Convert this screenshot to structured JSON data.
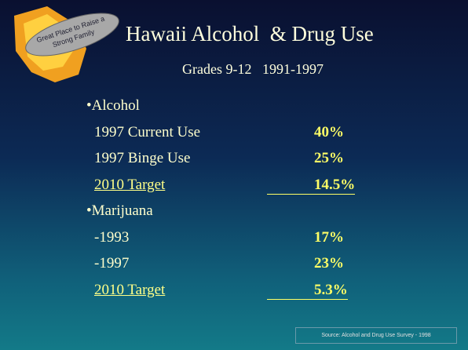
{
  "logo": {
    "line1": "Great Place to Raise a",
    "line2": "Strong Family"
  },
  "header": {
    "title": "Hawaii Alcohol  & Drug Use",
    "subtitle": "Grades 9-12   1991-1997"
  },
  "sections": [
    {
      "heading": "•Alcohol",
      "items": [
        {
          "label": "1997 Current Use",
          "value": "40%"
        },
        {
          "label": "1997 Binge Use",
          "value": "25%"
        },
        {
          "label": "2010 Target",
          "value": "14.5%"
        }
      ]
    },
    {
      "heading": "•Marijuana",
      "items": [
        {
          "label": "-1993",
          "value": "17%"
        },
        {
          "label": "-1997",
          "value": "23%"
        },
        {
          "label": "2010 Target",
          "value": "5.3%"
        }
      ]
    }
  ],
  "source": "Source:  Alcohol and Drug Use Survey - 1998"
}
